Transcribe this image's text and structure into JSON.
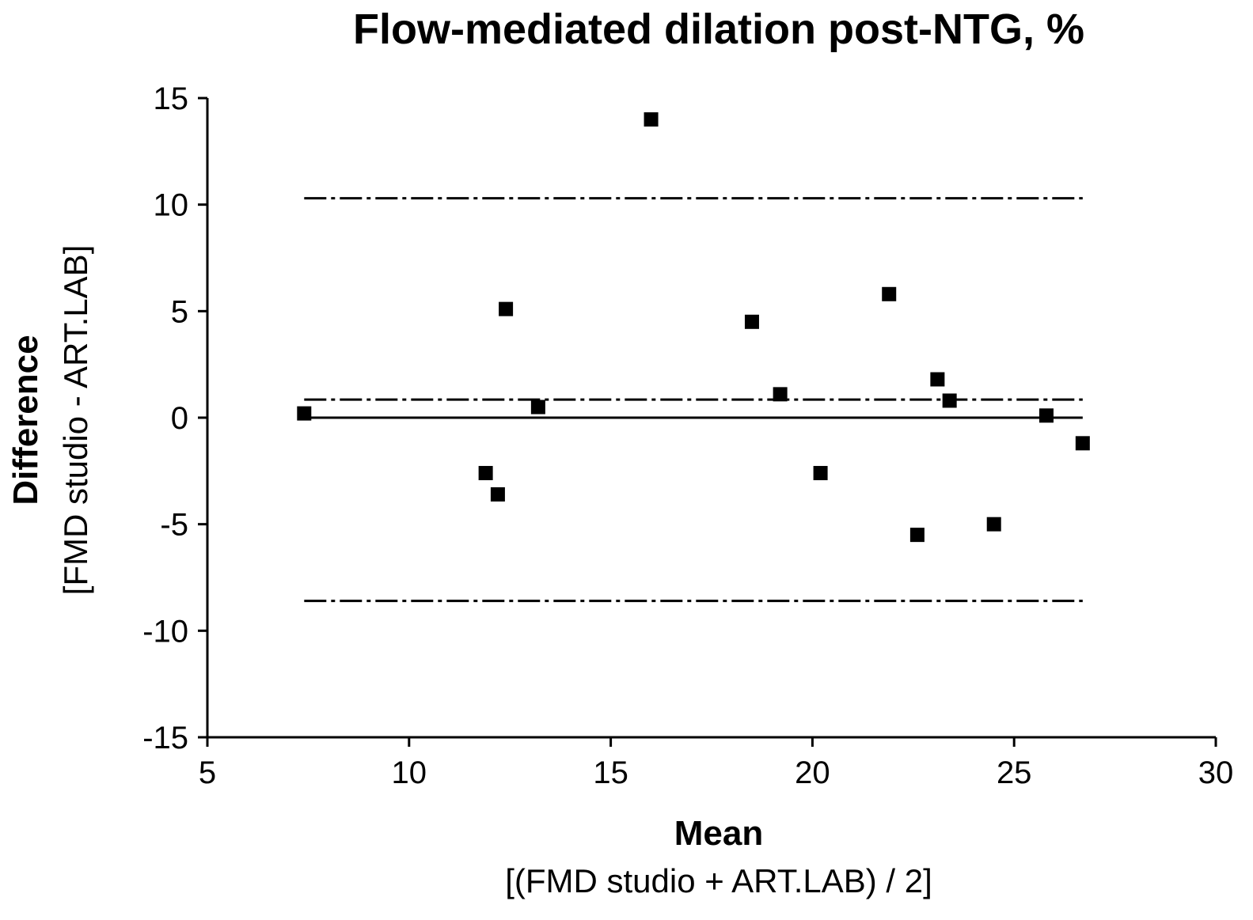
{
  "chart_data": {
    "type": "scatter",
    "title": "Flow-mediated dilation post-NTG, %",
    "xlabel": "Mean",
    "xlabel_sub": "[(FMD studio + ART.LAB) / 2]",
    "ylabel": "Difference",
    "ylabel_sub": "[FMD studio - ART.LAB]",
    "xlim": [
      5,
      30
    ],
    "ylim": [
      -15,
      15
    ],
    "x_ticks": [
      5,
      10,
      15,
      20,
      25,
      30
    ],
    "y_ticks": [
      -15,
      -10,
      -5,
      0,
      5,
      10,
      15
    ],
    "x_tick_labels": [
      "5",
      "10",
      "15",
      "20",
      "25",
      "30"
    ],
    "y_tick_labels": [
      "-15",
      "-10",
      "-5",
      "0",
      "5",
      "10",
      "15"
    ],
    "grid": false,
    "series": [
      {
        "marker": "square",
        "color": "#000000",
        "points": [
          {
            "x": 7.4,
            "y": 0.2
          },
          {
            "x": 11.9,
            "y": -2.6
          },
          {
            "x": 12.2,
            "y": -3.6
          },
          {
            "x": 12.4,
            "y": 5.1
          },
          {
            "x": 13.2,
            "y": 0.5
          },
          {
            "x": 16.0,
            "y": 14.0
          },
          {
            "x": 18.5,
            "y": 4.5
          },
          {
            "x": 19.2,
            "y": 1.1
          },
          {
            "x": 20.2,
            "y": -2.6
          },
          {
            "x": 21.9,
            "y": 5.8
          },
          {
            "x": 22.6,
            "y": -5.5
          },
          {
            "x": 23.1,
            "y": 1.8
          },
          {
            "x": 23.4,
            "y": 0.8
          },
          {
            "x": 24.5,
            "y": -5.0
          },
          {
            "x": 25.8,
            "y": 0.1
          },
          {
            "x": 26.7,
            "y": -1.2
          }
        ]
      }
    ],
    "reference_lines": [
      {
        "y": 10.3,
        "style": "dash-dot",
        "x_from": 7.4,
        "x_to": 26.7
      },
      {
        "y": 0.85,
        "style": "dash-dot",
        "x_from": 7.4,
        "x_to": 26.7
      },
      {
        "y": -8.6,
        "style": "dash-dot",
        "x_from": 7.4,
        "x_to": 26.7
      },
      {
        "y": 0,
        "style": "solid",
        "x_from": 7.4,
        "x_to": 26.7
      }
    ]
  }
}
